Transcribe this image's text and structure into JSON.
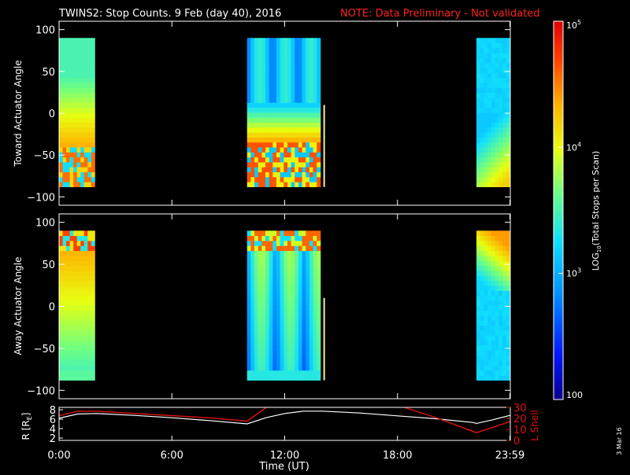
{
  "title": {
    "main": "TWINS2: Stop Counts.  9 Feb (day  40), 2016",
    "note": "NOTE: Data Preliminary - Not validated"
  },
  "stamp": "3 Mar 16",
  "colors": {
    "background": "#000000",
    "axes": "#ffffff",
    "note": "#ff2020",
    "r_line": "#ffffff",
    "lshell_line": "#e01010"
  },
  "chart_data": [
    {
      "type": "heatmap",
      "name": "toward",
      "ylabel": "Toward Actuator Angle",
      "xlim": [
        0,
        24
      ],
      "ylim": [
        -110,
        110
      ],
      "yticks": [
        100,
        50,
        0,
        -50,
        -100
      ],
      "ytick_labels": [
        "100",
        "50",
        "0",
        "−50",
        "−100"
      ],
      "angle_range": [
        -88,
        90
      ],
      "segments": [
        {
          "t_start": 0.0,
          "t_end": 1.9,
          "profile": "toward_early"
        },
        {
          "t_start": 10.0,
          "t_end": 13.9,
          "profile": "toward_mid"
        },
        {
          "t_start": 22.2,
          "t_end": 23.98,
          "profile": "toward_late"
        }
      ],
      "marker_line": {
        "t": 14.1,
        "angle_range": [
          -88,
          10
        ]
      }
    },
    {
      "type": "heatmap",
      "name": "away",
      "ylabel": "Away Actuator Angle",
      "xlim": [
        0,
        24
      ],
      "ylim": [
        -110,
        110
      ],
      "yticks": [
        100,
        50,
        0,
        -50,
        -100
      ],
      "ytick_labels": [
        "100",
        "50",
        "0",
        "−50",
        "−100"
      ],
      "angle_range": [
        -88,
        90
      ],
      "segments": [
        {
          "t_start": 0.0,
          "t_end": 1.9,
          "profile": "away_early"
        },
        {
          "t_start": 10.0,
          "t_end": 13.9,
          "profile": "away_mid"
        },
        {
          "t_start": 22.2,
          "t_end": 23.98,
          "profile": "away_late"
        }
      ],
      "marker_line": {
        "t": 14.1,
        "angle_range": [
          -88,
          10
        ]
      }
    },
    {
      "type": "line",
      "name": "ephemeris",
      "xlabel": "Time (UT)",
      "xlim": [
        0,
        24
      ],
      "xticks": [
        0,
        6,
        12,
        18,
        23.98
      ],
      "xtick_labels": [
        "0:00",
        "6:00",
        "12:00",
        "18:00",
        "23:59"
      ],
      "y_left": {
        "label": "R [R",
        "label_sub": "E",
        "label_end": "]",
        "ylim": [
          1.5,
          8.5
        ],
        "ticks": [
          2,
          4,
          6,
          8
        ],
        "tick_labels": [
          "2",
          "4",
          "6",
          "8"
        ]
      },
      "y_right": {
        "label": "L Shell",
        "ylim": [
          0,
          30
        ],
        "ticks": [
          0,
          10,
          20,
          30
        ],
        "tick_labels": [
          "0",
          "10",
          "20",
          "30"
        ]
      },
      "series": [
        {
          "axis": "left",
          "color": "#ffffff",
          "x": [
            0,
            1,
            2,
            4,
            6,
            8,
            10,
            11,
            12,
            13,
            14,
            16,
            18,
            20,
            22,
            22.2,
            23,
            23.98
          ],
          "y": [
            6.2,
            7.1,
            7.2,
            6.8,
            6.3,
            5.7,
            5.0,
            6.3,
            7.2,
            7.7,
            7.7,
            7.3,
            6.7,
            6.1,
            5.3,
            5.1,
            5.8,
            6.8
          ]
        },
        {
          "axis": "right",
          "color": "#e01010",
          "segments": [
            {
              "x": [
                0,
                1,
                2,
                4,
                6,
                8,
                10,
                11.2
              ],
              "y": [
                22.5,
                26.5,
                26.5,
                24.5,
                22.5,
                20.5,
                17.5,
                32
              ]
            },
            {
              "x": [
                18.0,
                20,
                22.2,
                23.98
              ],
              "y": [
                32,
                21,
                7,
                17
              ]
            }
          ]
        }
      ]
    }
  ],
  "colorbar": {
    "label_pre": "LOG",
    "label_sub": "10",
    "label_post": "(Total Stops per Scan)",
    "ticks": [
      {
        "value": 2,
        "base": "100",
        "exp": ""
      },
      {
        "value": 3,
        "base": "10",
        "exp": "3"
      },
      {
        "value": 4,
        "base": "10",
        "exp": "4"
      },
      {
        "value": 5,
        "base": "10",
        "exp": "5"
      }
    ],
    "range": [
      2,
      5
    ]
  }
}
